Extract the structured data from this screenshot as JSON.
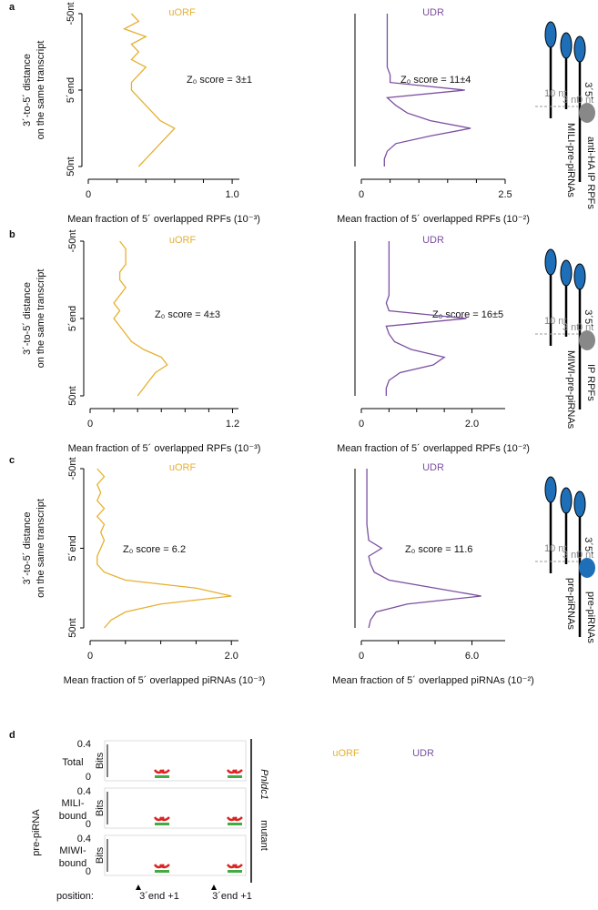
{
  "panel_labels": [
    "a",
    "b",
    "c",
    "d"
  ],
  "chart_data": [
    {
      "type": "line",
      "orientation": "horizontal",
      "title": "uORF",
      "color": "#e6b030",
      "annotation": "Z₀ score = 3±1",
      "ylabel": [
        "3´-to-5´ distance",
        "on the same transcript"
      ],
      "xlabel": "Mean fraction of 5´ overlapped RPFs (10⁻³)",
      "positions": [
        -50,
        -45,
        -40,
        -35,
        -30,
        -25,
        -20,
        -15,
        -10,
        -5,
        0,
        5,
        10,
        15,
        20,
        25,
        30,
        35,
        40,
        45,
        50
      ],
      "values": [
        0.3,
        0.35,
        0.25,
        0.4,
        0.3,
        0.35,
        0.3,
        0.4,
        0.35,
        0.3,
        0.3,
        0.35,
        0.4,
        0.45,
        0.5,
        0.6,
        0.55,
        0.5,
        0.45,
        0.4,
        0.35
      ],
      "xlim": [
        0,
        1.05
      ],
      "xticks": [
        0,
        {
          "value": 1.0,
          "label": "1.0"
        }
      ],
      "minor_xticks": [
        0.2,
        0.4,
        0.6,
        0.8
      ],
      "ylim": [
        -50,
        50
      ],
      "yticks": [
        {
          "value": -50,
          "label": "-50nt"
        },
        {
          "value": 0,
          "label": "5´end"
        },
        {
          "value": 50,
          "label": "50nt"
        }
      ]
    },
    {
      "type": "line",
      "orientation": "horizontal",
      "title": "UDR",
      "color": "#7b4fa0",
      "annotation": "Z₀ score = 11±4",
      "xlabel": "Mean fraction of 5´ overlapped RPFs (10⁻²)",
      "positions": [
        -50,
        -45,
        -40,
        -35,
        -30,
        -25,
        -20,
        -15,
        -10,
        -5,
        0,
        5,
        10,
        15,
        20,
        25,
        30,
        35,
        40,
        45,
        50
      ],
      "values": [
        0.45,
        0.45,
        0.45,
        0.45,
        0.45,
        0.45,
        0.45,
        0.45,
        0.5,
        0.5,
        1.8,
        0.45,
        0.6,
        0.8,
        1.2,
        1.9,
        1.2,
        0.6,
        0.45,
        0.4,
        0.4
      ],
      "xlim": [
        0,
        2.5
      ],
      "xticks": [
        0,
        2.5
      ],
      "minor_xticks": [
        0.5,
        1,
        1.5,
        2
      ],
      "ylim": [
        -50,
        50
      ]
    },
    {
      "type": "line",
      "orientation": "horizontal",
      "title": "uORF",
      "color": "#e6b030",
      "annotation": "Z₀ score = 4±3",
      "ylabel": [
        "3´-to-5´ distance",
        "on the same transcript"
      ],
      "xlabel": "Mean fraction of 5´ overlapped RPFs (10⁻³)",
      "positions": [
        -50,
        -45,
        -40,
        -35,
        -30,
        -25,
        -20,
        -15,
        -10,
        -5,
        0,
        5,
        10,
        15,
        20,
        25,
        30,
        35,
        40,
        45,
        50
      ],
      "values": [
        0.25,
        0.3,
        0.3,
        0.3,
        0.25,
        0.25,
        0.3,
        0.25,
        0.2,
        0.25,
        0.2,
        0.25,
        0.3,
        0.35,
        0.45,
        0.6,
        0.65,
        0.55,
        0.5,
        0.45,
        0.4
      ],
      "xlim": [
        0,
        1.25
      ],
      "xticks": [
        0,
        1.2
      ],
      "minor_xticks": [
        0.2,
        0.4,
        0.6,
        0.8,
        1
      ],
      "ylim": [
        -50,
        50
      ],
      "yticks": [
        {
          "value": -50,
          "label": "-50nt"
        },
        {
          "value": 0,
          "label": "5´end"
        },
        {
          "value": 50,
          "label": "50nt"
        }
      ]
    },
    {
      "type": "line",
      "orientation": "horizontal",
      "title": "UDR",
      "color": "#7b4fa0",
      "annotation": "Z₀ score = 16±5",
      "xlabel": "Mean fraction of 5´ overlapped RPFs (10⁻²)",
      "positions": [
        -50,
        -45,
        -40,
        -35,
        -30,
        -25,
        -20,
        -15,
        -10,
        -5,
        0,
        5,
        10,
        15,
        20,
        25,
        30,
        35,
        40,
        45,
        50
      ],
      "values": [
        0.5,
        0.5,
        0.5,
        0.5,
        0.5,
        0.5,
        0.5,
        0.5,
        0.45,
        0.5,
        1.9,
        0.45,
        0.5,
        0.6,
        0.9,
        1.5,
        1.3,
        0.7,
        0.5,
        0.45,
        0.45
      ],
      "xlim": [
        0,
        2.6
      ],
      "xticks": [
        0,
        {
          "value": 2.0,
          "label": "2.0"
        }
      ],
      "minor_xticks": [
        0.5,
        1,
        1.5
      ],
      "ylim": [
        -50,
        50
      ]
    },
    {
      "type": "line",
      "orientation": "horizontal",
      "title": "uORF",
      "color": "#e6b030",
      "annotation": "Z₀ score = 6.2",
      "ylabel": [
        "3´-to-5´ distance",
        "on the same transcript"
      ],
      "xlabel": "Mean fraction of 5´ overlapped piRNAs (10⁻³)",
      "positions": [
        -50,
        -45,
        -40,
        -35,
        -30,
        -25,
        -20,
        -15,
        -10,
        -5,
        0,
        5,
        10,
        15,
        20,
        25,
        30,
        35,
        40,
        45,
        50
      ],
      "values": [
        0.1,
        0.2,
        0.1,
        0.15,
        0.1,
        0.2,
        0.1,
        0.2,
        0.15,
        0.2,
        0.15,
        0.1,
        0.1,
        0.2,
        0.5,
        1.5,
        2.0,
        1.0,
        0.5,
        0.3,
        0.2
      ],
      "xlim": [
        0,
        2.1
      ],
      "xticks": [
        0,
        {
          "value": 2.0,
          "label": "2.0"
        }
      ],
      "minor_xticks": [
        0.5,
        1,
        1.5
      ],
      "ylim": [
        -50,
        50
      ],
      "yticks": [
        {
          "value": -50,
          "label": "-50nt"
        },
        {
          "value": 0,
          "label": "5´end"
        },
        {
          "value": 50,
          "label": "50nt"
        }
      ]
    },
    {
      "type": "line",
      "orientation": "horizontal",
      "title": "UDR",
      "color": "#7b4fa0",
      "annotation": "Z₀ score = 11.6",
      "xlabel": "Mean fraction of 5´ overlapped piRNAs (10⁻²)",
      "positions": [
        -50,
        -45,
        -40,
        -35,
        -30,
        -25,
        -20,
        -15,
        -10,
        -5,
        0,
        5,
        10,
        15,
        20,
        25,
        30,
        35,
        40,
        45,
        50
      ],
      "values": [
        0.3,
        0.3,
        0.3,
        0.3,
        0.3,
        0.3,
        0.3,
        0.3,
        0.35,
        0.4,
        1.1,
        0.4,
        0.5,
        0.7,
        1.5,
        4.0,
        6.5,
        2.5,
        0.8,
        0.5,
        0.4
      ],
      "xlim": [
        0,
        7.8
      ],
      "xticks": [
        0,
        {
          "value": 6.0,
          "label": "6.0"
        }
      ],
      "minor_xticks": [
        2,
        4
      ],
      "ylim": [
        -50,
        50
      ]
    }
  ],
  "schematics": [
    {
      "nt_labels": [
        "10 nt",
        "3 nt",
        "0 nt"
      ],
      "ends": "3´5´",
      "labels": [
        "MILI-pre-piRNAs",
        "anti-HA IP RPFs"
      ]
    },
    {
      "nt_labels": [
        "10 nt",
        "3 nt",
        "0 nt"
      ],
      "ends": "3´5´",
      "labels": [
        "MIWI-pre-piRNAs",
        "IP RPFs"
      ]
    },
    {
      "nt_labels": [
        "10 nt",
        "3 nt",
        "0 nt"
      ],
      "ends": "3´5´",
      "labels": [
        "pre-piRNAs",
        "pre-piRNAs"
      ]
    }
  ],
  "panel_d": {
    "columns": [
      "uORF",
      "UDR"
    ],
    "group": "pre-piRNA",
    "rows": [
      [
        "Total"
      ],
      [
        "MILI-",
        "bound"
      ],
      [
        "MIWI-",
        "bound"
      ]
    ],
    "axis_label": "Bits",
    "ticks": [
      0.4,
      0
    ],
    "genotype": [
      "Pnldc1",
      "mutant"
    ],
    "position_label": "position:",
    "positions": [
      "3´end +1",
      "3´end +1"
    ]
  }
}
